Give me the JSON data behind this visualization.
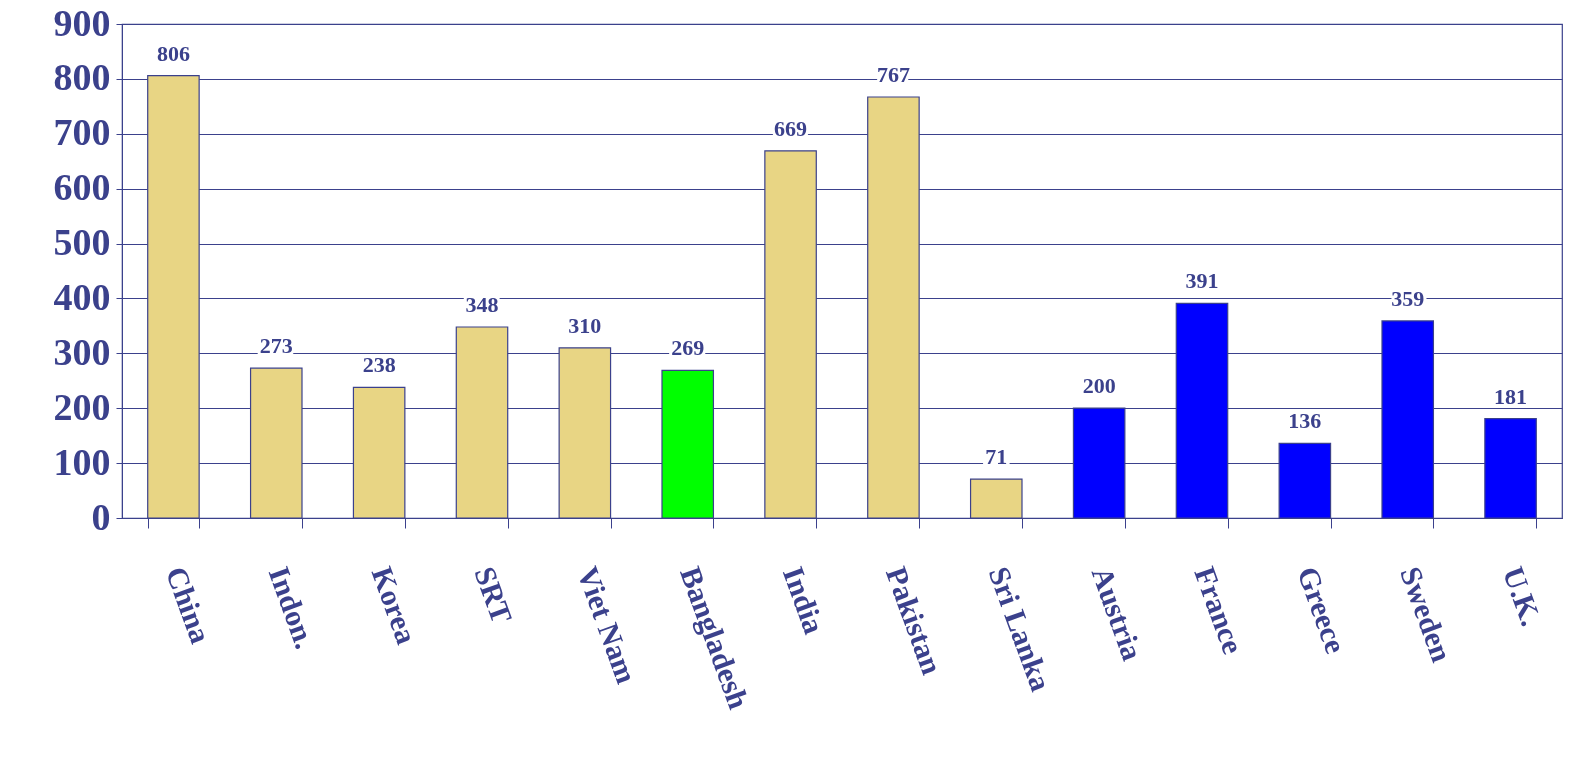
{
  "chart_data": {
    "type": "bar",
    "categories": [
      "China",
      "Indon.",
      "Korea",
      "SRT",
      "Viet Nam",
      "Bangladesh",
      "India",
      "Pakistan",
      "Sri Lanka",
      "Austria",
      "France",
      "Greece",
      "Sweden",
      "U.K."
    ],
    "values": [
      806,
      273,
      238,
      348,
      310,
      269,
      669,
      767,
      71,
      200,
      391,
      136,
      359,
      181
    ],
    "colors": [
      "#e8d584",
      "#e8d584",
      "#e8d584",
      "#e8d584",
      "#e8d584",
      "#00ff00",
      "#e8d584",
      "#e8d584",
      "#e8d584",
      "#0000ff",
      "#0000ff",
      "#0000ff",
      "#0000ff",
      "#0000ff"
    ],
    "ylim": [
      0,
      900
    ],
    "yticks": [
      0,
      100,
      200,
      300,
      400,
      500,
      600,
      700,
      800,
      900
    ],
    "grid": "y",
    "data_labels": true
  }
}
